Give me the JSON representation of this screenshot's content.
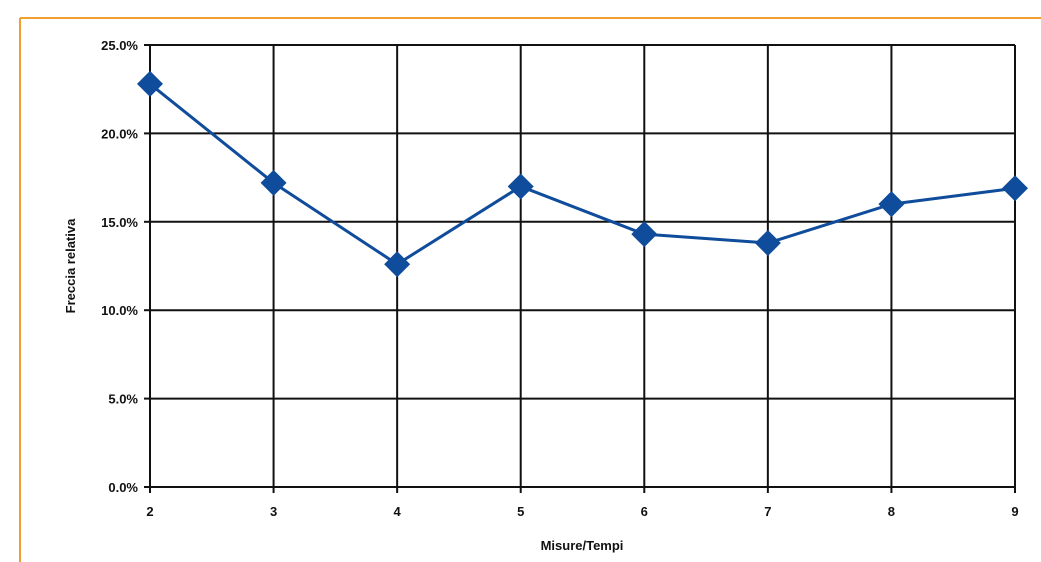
{
  "chart_data": {
    "type": "line",
    "title": "",
    "xlabel": "Misure/Tempi",
    "ylabel": "Freccia relativa",
    "x": [
      2,
      3,
      4,
      5,
      6,
      7,
      8,
      9
    ],
    "x_tick_labels": [
      "2",
      "3",
      "4",
      "5",
      "6",
      "7",
      "8",
      "9"
    ],
    "xlim": [
      2,
      9
    ],
    "ylim": [
      0,
      25
    ],
    "y_ticks": [
      0,
      5,
      10,
      15,
      20,
      25
    ],
    "y_tick_labels": [
      "0.0%",
      "5.0%",
      "10.0%",
      "15.0%",
      "20.0%",
      "25.0%"
    ],
    "grid": true,
    "legend": "none",
    "series": [
      {
        "values": [
          22.8,
          17.2,
          12.6,
          17.0,
          14.3,
          13.8,
          16.0,
          16.9
        ],
        "color": "#0F4C9B",
        "marker": "diamond"
      }
    ],
    "colors": {
      "frame": "#F0A030",
      "grid": "#111111"
    }
  }
}
